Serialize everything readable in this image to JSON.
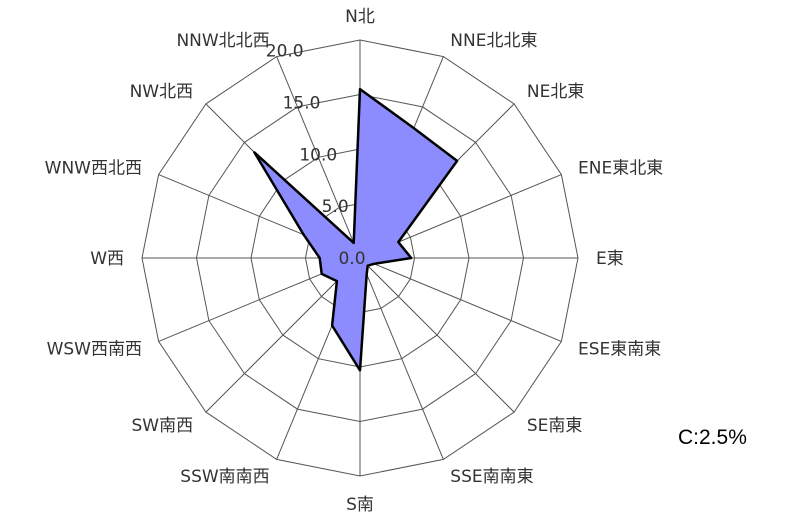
{
  "chart_data": {
    "type": "radar",
    "directions": [
      "N北",
      "NNE北北東",
      "NE北東",
      "ENE東北東",
      "E東",
      "ESE東南東",
      "SE南東",
      "SSE南南東",
      "S南",
      "SSW南南西",
      "SW南西",
      "WSW西南西",
      "W西",
      "WNW西北西",
      "NW北西",
      "NNW北北西"
    ],
    "values": [
      15.5,
      12.9,
      12.6,
      3.8,
      4.7,
      1.4,
      1.0,
      1.6,
      10.3,
      6.7,
      3.0,
      3.8,
      3.7,
      5.6,
      13.7,
      1.5
    ],
    "rlim": [
      0,
      20
    ],
    "ticks": [
      "0.0",
      "5.0",
      "10.0",
      "15.0",
      "20.0"
    ],
    "grid": true,
    "colors": {
      "fill": "#8c8cff",
      "stroke": "#000000",
      "grid": "#555555"
    }
  },
  "calm": {
    "text": "C:2.5%"
  }
}
